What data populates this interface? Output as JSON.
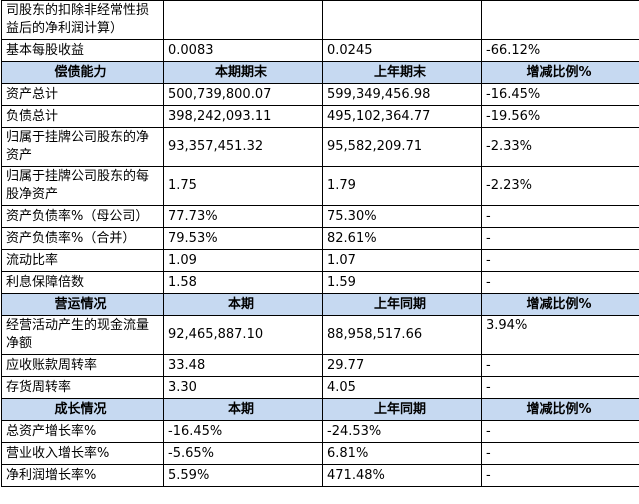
{
  "top_rows": [
    [
      "司股东的扣除非经常性损益后的净利润计算）"
    ],
    [
      "基本每股收益",
      "0.0083",
      "0.0245",
      "-66.12%"
    ]
  ],
  "sections": [
    {
      "header": [
        "偿债能力",
        "本期期末",
        "上年期末",
        "增减比例%"
      ],
      "rows": [
        [
          "资产总计",
          "500,739,800.07",
          "599,349,456.98",
          "-16.45%"
        ],
        [
          "负债总计",
          "398,242,093.11",
          "495,102,364.77",
          "-19.56%"
        ],
        [
          "归属于挂牌公司股东的净资产",
          "93,357,451.32",
          "95,582,209.71",
          "-2.33%"
        ],
        [
          "归属于挂牌公司股东的每股净资产",
          "1.75",
          "1.79",
          "-2.23%"
        ],
        [
          "资产负债率%（母公司）",
          "77.73%",
          "75.30%",
          "-"
        ],
        [
          "资产负债率%（合并）",
          "79.53%",
          "82.61%",
          "-"
        ],
        [
          "流动比率",
          "1.09",
          "1.07",
          "-"
        ],
        [
          "利息保障倍数",
          "1.58",
          "1.59",
          "-"
        ]
      ]
    },
    {
      "header": [
        "营运情况",
        "本期",
        "上年同期",
        "增减比例%"
      ],
      "rows": [
        [
          "经营活动产生的现金流量净额",
          "92,465,887.10",
          "88,958,517.66",
          "3.94%"
        ],
        [
          "应收账款周转率",
          "33.48",
          "29.77",
          "-"
        ],
        [
          "存货周转率",
          "3.30",
          "4.05",
          "-"
        ]
      ]
    },
    {
      "header": [
        "成长情况",
        "本期",
        "上年同期",
        "增减比例%"
      ],
      "rows": [
        [
          "总资产增长率%",
          "-16.45%",
          "-24.53%",
          "-"
        ],
        [
          "营业收入增长率%",
          "-5.65%",
          "6.81%",
          "-"
        ],
        [
          "净利润增长率%",
          "5.59%",
          "471.48%",
          "-"
        ]
      ]
    }
  ]
}
